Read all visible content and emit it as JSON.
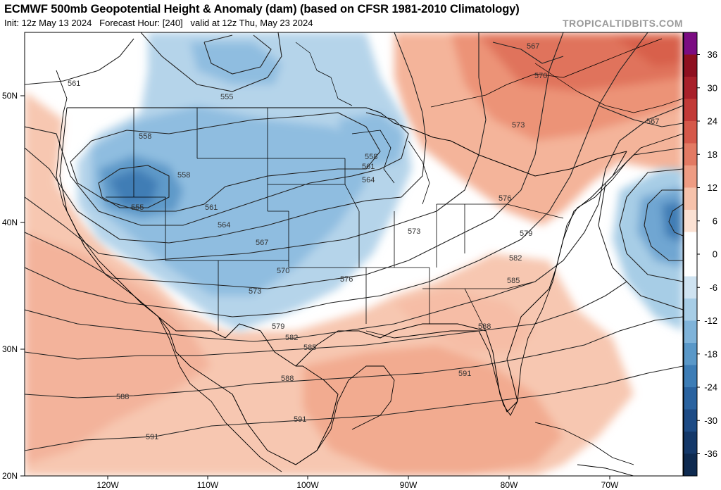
{
  "header": {
    "title": "ECMWF 500mb Geopotential Height & Anomaly (dam) (based on CFSR 1981-2010 Climatology)",
    "init": "Init: 12z May 13 2024",
    "forecast_hour": "Forecast Hour: [240]",
    "valid": "valid at 12z Thu, May 23 2024",
    "site": "TROPICALTIDBITS.COM"
  },
  "axes": {
    "lat_labels": [
      "50N",
      "40N",
      "30N",
      "20N"
    ],
    "lon_labels": [
      "120W",
      "110W",
      "100W",
      "90W",
      "80W",
      "70W"
    ]
  },
  "colorbar": {
    "labels": [
      "36",
      "30",
      "24",
      "18",
      "12",
      "6",
      "0",
      "-6",
      "-12",
      "-18",
      "-24",
      "-30",
      "-36"
    ],
    "colors": [
      "#7b0c82",
      "#8e1020",
      "#a8202a",
      "#c23a37",
      "#d5584a",
      "#e37a63",
      "#ee9c83",
      "#f6c2ab",
      "#fbe1d3",
      "#ffffff",
      "#ffffff",
      "#cfe3f1",
      "#a7cde6",
      "#7fb3d9",
      "#5a98c8",
      "#3d7db6",
      "#2a63a0",
      "#1d4b85",
      "#143869",
      "#0e2a50"
    ]
  },
  "contours": {
    "labels": [
      "561",
      "555",
      "558",
      "558",
      "555",
      "561",
      "564",
      "567",
      "570",
      "573",
      "579",
      "582",
      "585",
      "588",
      "591",
      "588",
      "591",
      "588",
      "558",
      "561",
      "564",
      "573",
      "576",
      "579",
      "582",
      "585",
      "567",
      "570",
      "573",
      "567",
      "576",
      "591",
      "588"
    ]
  }
}
